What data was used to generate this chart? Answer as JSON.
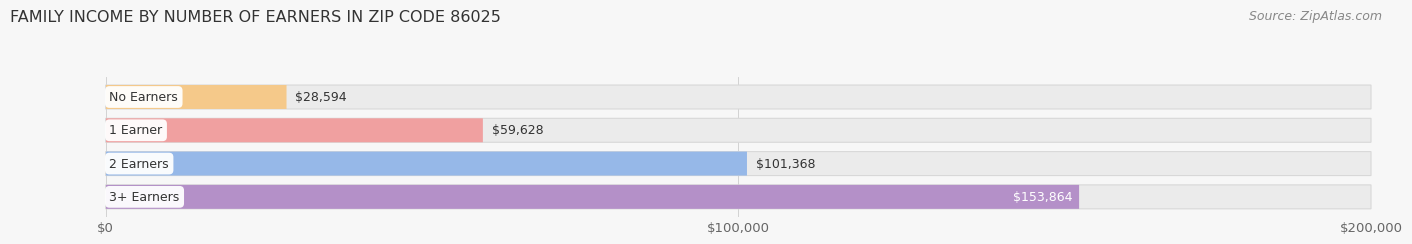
{
  "title": "FAMILY INCOME BY NUMBER OF EARNERS IN ZIP CODE 86025",
  "source": "Source: ZipAtlas.com",
  "categories": [
    "No Earners",
    "1 Earner",
    "2 Earners",
    "3+ Earners"
  ],
  "values": [
    28594,
    59628,
    101368,
    153864
  ],
  "bar_colors": [
    "#f5c98a",
    "#f0a0a0",
    "#96b8e8",
    "#b490c8"
  ],
  "bar_bg_color": "#ebebeb",
  "bar_bg_edge_color": "#d8d8d8",
  "label_colors": [
    "#444444",
    "#444444",
    "#444444",
    "#ffffff"
  ],
  "xlim": [
    0,
    200000
  ],
  "xtick_values": [
    0,
    100000,
    200000
  ],
  "xtick_labels": [
    "$0",
    "$100,000",
    "$200,000"
  ],
  "background_color": "#f7f7f7",
  "title_fontsize": 11.5,
  "source_fontsize": 9,
  "tick_fontsize": 9.5,
  "label_fontsize": 9,
  "category_fontsize": 9
}
